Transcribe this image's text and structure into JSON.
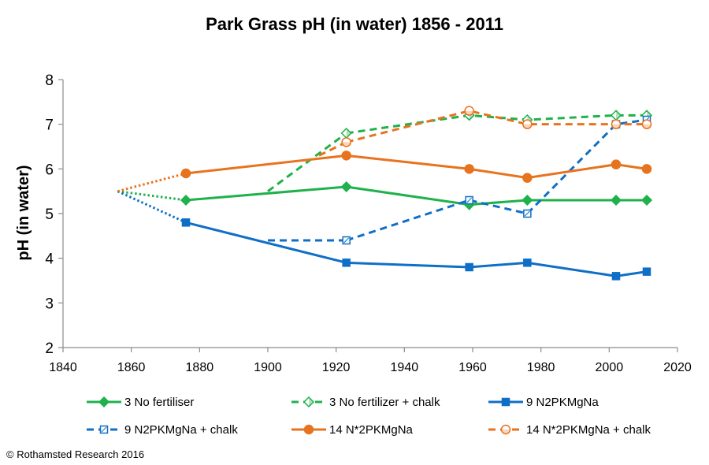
{
  "copyright": "© Rothamsted Research 2016",
  "chart_data": {
    "type": "line",
    "title": "Park Grass  pH (in water) 1856 - 2011",
    "xlabel": "",
    "ylabel": "pH (in water)",
    "xlim": [
      1840,
      2020
    ],
    "ylim": [
      2,
      8
    ],
    "x_ticks": [
      1840,
      1860,
      1880,
      1900,
      1920,
      1940,
      1960,
      1980,
      2000,
      2020
    ],
    "y_ticks": [
      2,
      3,
      4,
      5,
      6,
      7,
      8
    ],
    "grid": false,
    "legend_position": "bottom",
    "series": [
      {
        "name": "3 No fertiliser",
        "color": "#1fb14c",
        "line": "solid",
        "marker": "diamond-filled",
        "x": [
          1876,
          1923,
          1959,
          1976,
          2002,
          2011
        ],
        "y": [
          5.3,
          5.6,
          5.2,
          5.3,
          5.3,
          5.3
        ],
        "origin": {
          "x": 1856,
          "y": 5.5
        },
        "segments": [
          {
            "style": "dotted",
            "x": [
              1856,
              1876
            ],
            "y": [
              5.5,
              5.3
            ]
          }
        ]
      },
      {
        "name": "3 No fertilizer + chalk",
        "color": "#1fb14c",
        "line": "dashed",
        "marker": "diamond-open",
        "x": [
          1923,
          1959,
          1976,
          2002,
          2011
        ],
        "y": [
          6.8,
          7.2,
          7.1,
          7.2,
          7.2
        ],
        "segments": [
          {
            "style": "dashed",
            "x": [
              1900,
              1923
            ],
            "y": [
              5.5,
              6.8
            ]
          }
        ]
      },
      {
        "name": "9 N2PKMgNa",
        "color": "#0f6fc6",
        "line": "solid",
        "marker": "square-filled",
        "x": [
          1876,
          1923,
          1959,
          1976,
          2002,
          2011
        ],
        "y": [
          4.8,
          3.9,
          3.8,
          3.9,
          3.6,
          3.7
        ],
        "segments": [
          {
            "style": "dotted",
            "x": [
              1856,
              1876
            ],
            "y": [
              5.5,
              4.8
            ]
          }
        ]
      },
      {
        "name": "9 N2PKMgNa + chalk",
        "color": "#0f6fc6",
        "line": "dashed",
        "marker": "square-open",
        "x": [
          1923,
          1959,
          1976,
          2002,
          2011
        ],
        "y": [
          4.4,
          5.3,
          5.0,
          7.0,
          7.1
        ],
        "segments": [
          {
            "style": "dashed",
            "x": [
              1900,
              1923
            ],
            "y": [
              4.4,
              4.4
            ]
          }
        ]
      },
      {
        "name": "14 N*2PKMgNa",
        "color": "#e8731e",
        "line": "solid",
        "marker": "circle-filled",
        "x": [
          1876,
          1923,
          1959,
          1976,
          2002,
          2011
        ],
        "y": [
          5.9,
          6.3,
          6.0,
          5.8,
          6.1,
          6.0
        ],
        "segments": [
          {
            "style": "dotted",
            "x": [
              1856,
              1876
            ],
            "y": [
              5.5,
              5.9
            ]
          }
        ]
      },
      {
        "name": "14 N*2PKMgNa + chalk",
        "color": "#e8731e",
        "line": "dashed",
        "marker": "circle-open",
        "x": [
          1923,
          1959,
          1976,
          2002,
          2011
        ],
        "y": [
          6.6,
          7.3,
          7.0,
          7.0,
          7.0
        ],
        "segments": [
          {
            "style": "dashed",
            "x": [
              1915,
              1923
            ],
            "y": [
              6.3,
              6.6
            ]
          }
        ]
      }
    ]
  }
}
